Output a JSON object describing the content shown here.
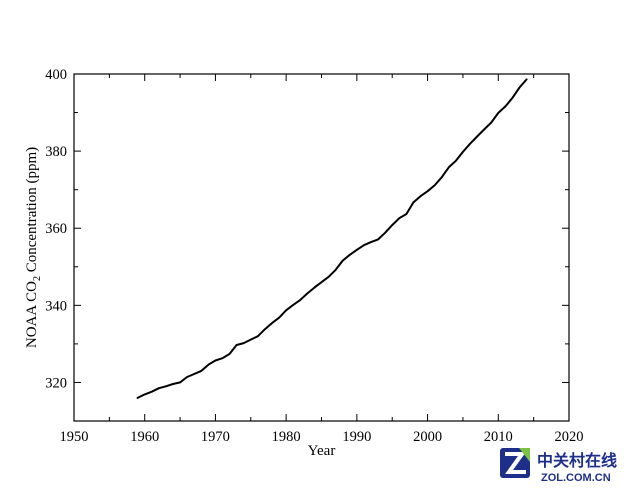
{
  "chart_data": {
    "type": "line",
    "title": "",
    "xlabel": "Year",
    "ylabel": {
      "prefix": "NOAA CO",
      "subscript": "2",
      "suffix": " Concentration (ppm)"
    },
    "xlim": [
      1950,
      2020
    ],
    "ylim": [
      310,
      400
    ],
    "x_ticks": [
      1950,
      1960,
      1970,
      1980,
      1990,
      2000,
      2010,
      2020
    ],
    "y_ticks": [
      320,
      340,
      360,
      380,
      400
    ],
    "grid": false,
    "line_color": "#000000",
    "series": [
      {
        "x": [
          1959,
          1960,
          1961,
          1962,
          1963,
          1964,
          1965,
          1966,
          1967,
          1968,
          1969,
          1970,
          1971,
          1972,
          1973,
          1974,
          1975,
          1976,
          1977,
          1978,
          1979,
          1980,
          1981,
          1982,
          1983,
          1984,
          1985,
          1986,
          1987,
          1988,
          1989,
          1990,
          1991,
          1992,
          1993,
          1994,
          1995,
          1996,
          1997,
          1998,
          1999,
          2000,
          2001,
          2002,
          2003,
          2004,
          2005,
          2006,
          2007,
          2008,
          2009,
          2010,
          2011,
          2012,
          2013,
          2014
        ],
        "y": [
          316.0,
          316.9,
          317.6,
          318.5,
          319.0,
          319.6,
          320.0,
          321.4,
          322.2,
          323.0,
          324.6,
          325.7,
          326.3,
          327.4,
          329.7,
          330.2,
          331.1,
          332.0,
          333.8,
          335.4,
          336.8,
          338.7,
          340.1,
          341.4,
          343.1,
          344.6,
          346.0,
          347.4,
          349.2,
          351.6,
          353.1,
          354.4,
          355.6,
          356.4,
          357.1,
          358.8,
          360.8,
          362.6,
          363.7,
          366.7,
          368.3,
          369.6,
          371.1,
          373.2,
          375.8,
          377.5,
          379.8,
          381.9,
          383.8,
          385.6,
          387.4,
          389.9,
          391.6,
          393.8,
          396.5,
          398.6
        ]
      }
    ]
  },
  "watermark": {
    "cn_text": "中关村在线",
    "en_text": "ZOL.COM.CN",
    "color": "#1d2f8a",
    "accent_color": "#7cc242"
  }
}
